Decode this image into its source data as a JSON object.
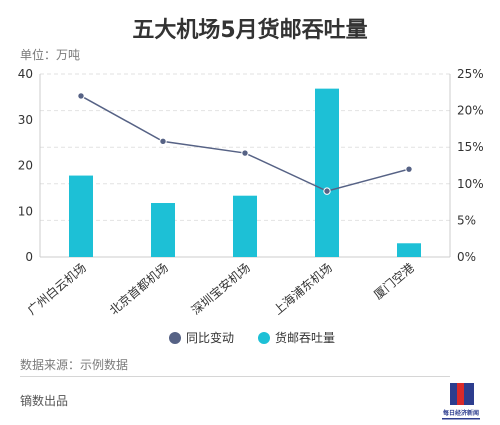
{
  "header": {
    "title": "五大机场5月货邮吞吐量",
    "unit": "单位：万吨"
  },
  "footer": {
    "source": "数据来源：示例数据",
    "producer": "镝数出品",
    "logo_text": "每日经济新闻"
  },
  "colors": {
    "bar": "#1dc0d6",
    "line": "#566285",
    "grid": "#e2e2e2",
    "axis": "#cccccc",
    "text": "#333333",
    "muted": "#7a7a7a"
  },
  "chart_data": {
    "type": "bar",
    "categories": [
      "广州白云机场",
      "北京首都机场",
      "深圳宝安机场",
      "上海浦东机场",
      "厦门空港"
    ],
    "series": [
      {
        "name": "货邮吞吐量",
        "type": "bar",
        "axis": "left",
        "values": [
          17.8,
          11.8,
          13.4,
          36.8,
          3.0
        ]
      },
      {
        "name": "同比变动",
        "type": "line",
        "axis": "right",
        "values": [
          22.0,
          15.8,
          14.2,
          9.0,
          12.0
        ]
      }
    ],
    "y_left": {
      "ticks": [
        "0",
        "10",
        "20",
        "30",
        "40"
      ],
      "lim": [
        0,
        40
      ]
    },
    "y_right": {
      "ticks": [
        "0%",
        "5%",
        "10%",
        "15%",
        "20%",
        "25%"
      ],
      "lim": [
        0,
        25
      ]
    },
    "legend": {
      "position": "bottom",
      "items": [
        "同比变动",
        "货邮吞吐量"
      ]
    },
    "grid": true
  }
}
